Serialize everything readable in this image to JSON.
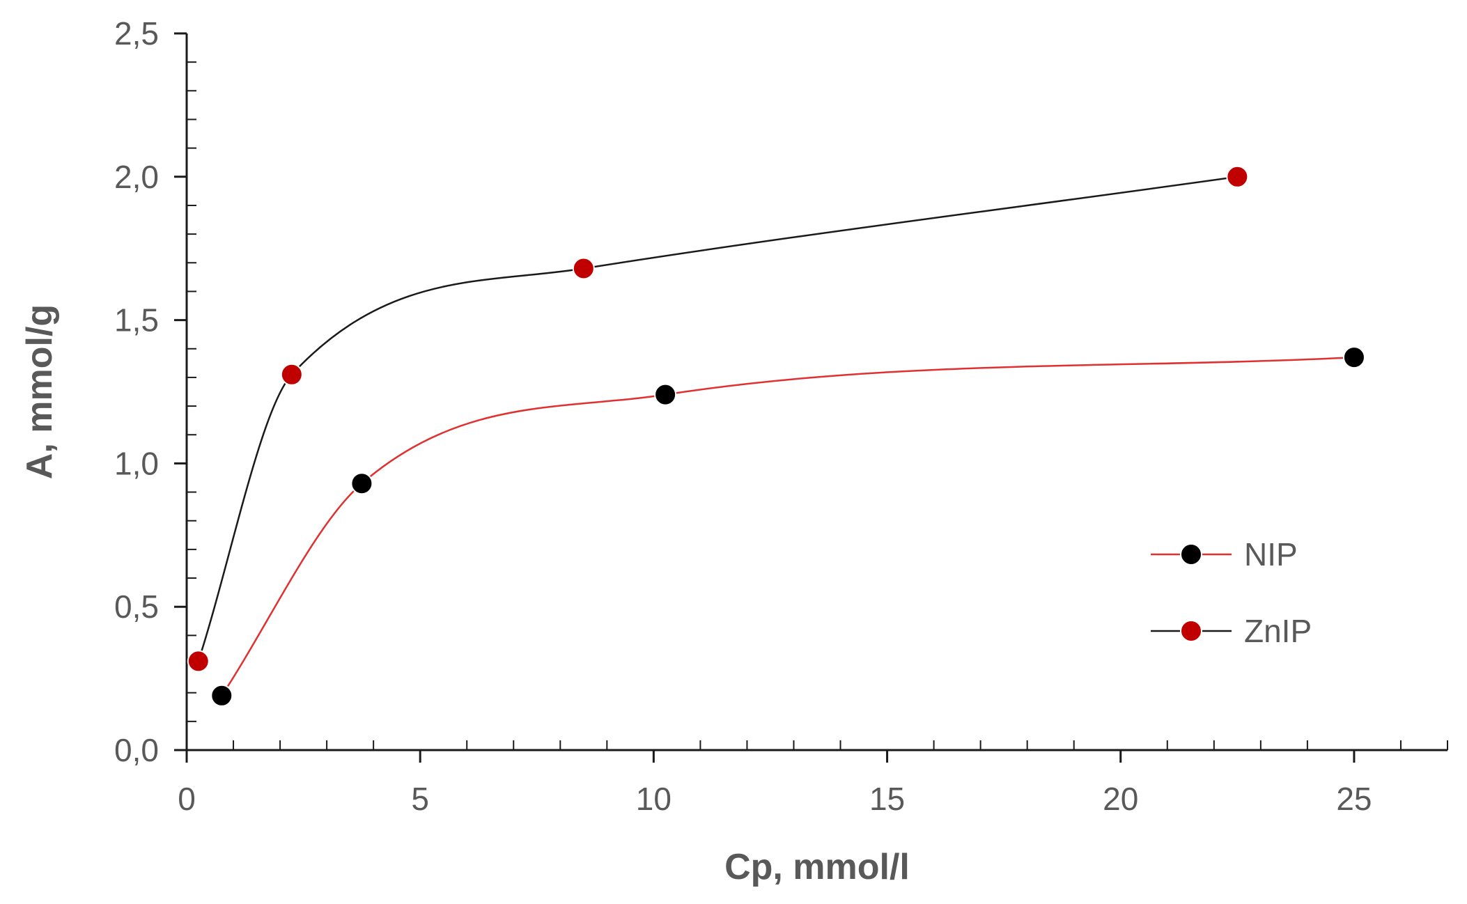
{
  "chart_data": {
    "type": "scatter",
    "xlabel": "Cp, mmol/l",
    "ylabel": "A, mmol/g",
    "xlim": [
      0,
      27
    ],
    "ylim": [
      0,
      2.5
    ],
    "x_ticks": [
      "0",
      "5",
      "10",
      "15",
      "20",
      "25"
    ],
    "x_tick_values": [
      0,
      5,
      10,
      15,
      20,
      25
    ],
    "y_ticks": [
      "0,0",
      "0,5",
      "1,0",
      "1,5",
      "2,0",
      "2,5"
    ],
    "y_tick_values": [
      0,
      0.5,
      1.0,
      1.5,
      2.0,
      2.5
    ],
    "grid": false,
    "legend_position": "right",
    "series": [
      {
        "name": "NIP",
        "marker_color": "#000000",
        "line_color": "#e03030",
        "x": [
          0.75,
          3.75,
          10.25,
          25.0
        ],
        "y": [
          0.19,
          0.93,
          1.24,
          1.37
        ]
      },
      {
        "name": "ZnIP",
        "marker_color": "#c00000",
        "line_color": "#1a1a1a",
        "x": [
          0.25,
          2.25,
          8.5,
          22.5
        ],
        "y": [
          0.31,
          1.31,
          1.68,
          2.0
        ]
      }
    ]
  }
}
